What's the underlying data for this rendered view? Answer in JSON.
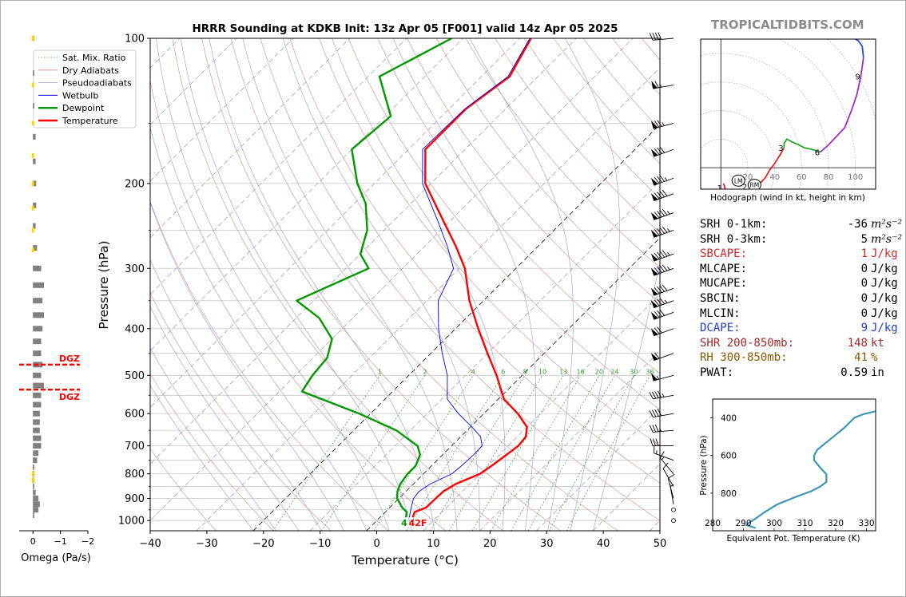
{
  "title": "HRRR Sounding at KDKB Init: 13z Apr 05 [F001] valid 14z Apr 05 2025",
  "site_watermark": "TROPICALTIDBITS.COM",
  "legend": {
    "items": [
      {
        "label": "Sat. Mix. Ratio",
        "color": "#2ca02c",
        "style": "dotted"
      },
      {
        "label": "Dry Adiabats",
        "color": "#d98c8c",
        "style": "solid"
      },
      {
        "label": "Pseudoadiabats",
        "color": "#9a9ad0",
        "style": "solid"
      },
      {
        "label": "Wetbulb",
        "color": "#0000ff",
        "style": "solid"
      },
      {
        "label": "Dewpoint",
        "color": "#009900",
        "style": "solid"
      },
      {
        "label": "Temperature",
        "color": "#ff0000",
        "style": "solid"
      }
    ]
  },
  "skewt": {
    "xlabel": "Temperature (°C)",
    "ylabel": "Pressure (hPa)",
    "x_ticks": [
      "−40",
      "−30",
      "−20",
      "−10",
      "0",
      "10",
      "20",
      "30",
      "40",
      "50"
    ],
    "y_ticks": [
      "100",
      "200",
      "300",
      "400",
      "500",
      "600",
      "700",
      "800",
      "900",
      "1000"
    ],
    "mixing_ratio_labels": [
      "1",
      "2",
      "4",
      "6",
      "8",
      "10",
      "13",
      "16",
      "20",
      "24",
      "30",
      "36"
    ],
    "surface_dewpoint_label": "4",
    "surface_temp_label": "42F"
  },
  "omega": {
    "xlabel": "Omega (Pa/s)",
    "ticks": [
      "0",
      "−1",
      "−2"
    ],
    "dgz_label_top": "DGZ",
    "dgz_label_bottom": "DGZ"
  },
  "hodograph": {
    "caption": "Hodograph (wind in kt, height in km)",
    "ring_labels": [
      "20",
      "40",
      "60",
      "80",
      "100"
    ],
    "height_labels": [
      "1",
      "2",
      "3",
      "6",
      "9"
    ],
    "lm_label": "LM",
    "rm_label": "RM"
  },
  "params": [
    {
      "label": "SRH 0-1km:",
      "value": "-36",
      "unit": "m²s⁻²",
      "color": "#000000"
    },
    {
      "label": "SRH 0-3km:",
      "value": "5",
      "unit": "m²s⁻²",
      "color": "#000000"
    },
    {
      "label": "SBCAPE:",
      "value": "1",
      "unit": "J/kg",
      "color": "#d62728"
    },
    {
      "label": "MLCAPE:",
      "value": "0",
      "unit": "J/kg",
      "color": "#000000"
    },
    {
      "label": "MUCAPE:",
      "value": "0",
      "unit": "J/kg",
      "color": "#000000"
    },
    {
      "label": "SBCIN:",
      "value": "0",
      "unit": "J/kg",
      "color": "#000000"
    },
    {
      "label": "MLCIN:",
      "value": "0",
      "unit": "J/kg",
      "color": "#000000"
    },
    {
      "label": "DCAPE:",
      "value": "9",
      "unit": "J/kg",
      "color": "#1f3fcf"
    },
    {
      "label": "SHR 200-850mb:",
      "value": "148",
      "unit": "kt",
      "color": "#a52a2a"
    },
    {
      "label": "RH 300-850mb:",
      "value": "41",
      "unit": "%",
      "color": "#8b5a00"
    },
    {
      "label": "PWAT:",
      "value": "0.59",
      "unit": "in",
      "color": "#000000"
    }
  ],
  "theta_e_panel": {
    "xlabel": "Equivalent Pot. Temperature (K)",
    "ylabel": "Pressure (hPa)",
    "x_ticks": [
      "280",
      "290",
      "300",
      "310",
      "320",
      "330"
    ],
    "y_ticks": [
      "400",
      "600",
      "800"
    ]
  },
  "chart_data": [
    {
      "type": "line",
      "name": "skew-t",
      "title": "HRRR Sounding at KDKB Init: 13z Apr 05 [F001] valid 14z Apr 05 2025",
      "xlabel": "Temperature (°C)",
      "ylabel": "Pressure (hPa)",
      "xlim": [
        -40,
        50
      ],
      "ylim": [
        1050,
        100
      ],
      "y_scale": "log",
      "skew": true,
      "legend_position": "top-left",
      "series": [
        {
          "name": "Temperature",
          "color": "#ff0000",
          "points": [
            [
              985,
              5.8
            ],
            [
              960,
              5.2
            ],
            [
              940,
              6.4
            ],
            [
              900,
              6.5
            ],
            [
              870,
              6.6
            ],
            [
              840,
              7.5
            ],
            [
              800,
              10
            ],
            [
              770,
              10.6
            ],
            [
              730,
              11.3
            ],
            [
              700,
              11.8
            ],
            [
              670,
              11.5
            ],
            [
              640,
              10
            ],
            [
              600,
              6
            ],
            [
              560,
              1
            ],
            [
              500,
              -4.5
            ],
            [
              450,
              -10
            ],
            [
              400,
              -16
            ],
            [
              350,
              -22.5
            ],
            [
              300,
              -29
            ],
            [
              270,
              -34.5
            ],
            [
              240,
              -41
            ],
            [
              200,
              -51
            ],
            [
              170,
              -57
            ],
            [
              140,
              -57
            ],
            [
              120,
              -55
            ],
            [
              100,
              -58
            ]
          ]
        },
        {
          "name": "Dewpoint",
          "color": "#009900",
          "points": [
            [
              985,
              4.6
            ],
            [
              960,
              3.8
            ],
            [
              940,
              2.2
            ],
            [
              900,
              -0.3
            ],
            [
              870,
              -1.5
            ],
            [
              840,
              -2.3
            ],
            [
              800,
              -2.8
            ],
            [
              770,
              -2.8
            ],
            [
              730,
              -4
            ],
            [
              700,
              -6
            ],
            [
              650,
              -12.5
            ],
            [
              600,
              -22
            ],
            [
              540,
              -36
            ],
            [
              500,
              -37
            ],
            [
              460,
              -37.5
            ],
            [
              420,
              -40
            ],
            [
              380,
              -46
            ],
            [
              350,
              -53
            ],
            [
              300,
              -46
            ],
            [
              280,
              -50
            ],
            [
              250,
              -53
            ],
            [
              220,
              -58
            ],
            [
              200,
              -63
            ],
            [
              170,
              -70
            ],
            [
              145,
              -69
            ],
            [
              120,
              -78
            ],
            [
              100,
              -72
            ]
          ]
        },
        {
          "name": "Wetbulb",
          "color": "#0000ff",
          "points": [
            [
              985,
              5.2
            ],
            [
              960,
              4.4
            ],
            [
              940,
              3.8
            ],
            [
              900,
              2.6
            ],
            [
              870,
              2.3
            ],
            [
              840,
              3.0
            ],
            [
              800,
              5
            ],
            [
              770,
              5.3
            ],
            [
              730,
              5.5
            ],
            [
              700,
              5.4
            ],
            [
              670,
              3.5
            ],
            [
              640,
              0.3
            ],
            [
              600,
              -4.5
            ],
            [
              560,
              -9
            ],
            [
              500,
              -13.2
            ],
            [
              450,
              -18
            ],
            [
              400,
              -23
            ],
            [
              350,
              -28
            ],
            [
              300,
              -31
            ],
            [
              270,
              -36
            ],
            [
              240,
              -42
            ],
            [
              200,
              -51.5
            ],
            [
              170,
              -57.5
            ],
            [
              140,
              -57.2
            ],
            [
              120,
              -55.3
            ],
            [
              100,
              -58.2
            ]
          ]
        }
      ],
      "wind_barbs": [
        {
          "p": 1000,
          "dir": 0,
          "kt": 0
        },
        {
          "p": 950,
          "dir": 0,
          "kt": 0
        },
        {
          "p": 925,
          "dir": 350,
          "kt": 5
        },
        {
          "p": 900,
          "dir": 345,
          "kt": 10
        },
        {
          "p": 850,
          "dir": 330,
          "kt": 10
        },
        {
          "p": 800,
          "dir": 320,
          "kt": 15
        },
        {
          "p": 750,
          "dir": 290,
          "kt": 15
        },
        {
          "p": 700,
          "dir": 270,
          "kt": 30
        },
        {
          "p": 650,
          "dir": 265,
          "kt": 35
        },
        {
          "p": 600,
          "dir": 260,
          "kt": 40
        },
        {
          "p": 550,
          "dir": 260,
          "kt": 45
        },
        {
          "p": 500,
          "dir": 255,
          "kt": 55
        },
        {
          "p": 450,
          "dir": 250,
          "kt": 60
        },
        {
          "p": 400,
          "dir": 250,
          "kt": 70
        },
        {
          "p": 370,
          "dir": 250,
          "kt": 80
        },
        {
          "p": 350,
          "dir": 250,
          "kt": 85
        },
        {
          "p": 330,
          "dir": 250,
          "kt": 90
        },
        {
          "p": 300,
          "dir": 250,
          "kt": 95
        },
        {
          "p": 280,
          "dir": 250,
          "kt": 95
        },
        {
          "p": 250,
          "dir": 250,
          "kt": 95
        },
        {
          "p": 230,
          "dir": 250,
          "kt": 95
        },
        {
          "p": 210,
          "dir": 250,
          "kt": 90
        },
        {
          "p": 195,
          "dir": 250,
          "kt": 85
        },
        {
          "p": 170,
          "dir": 250,
          "kt": 80
        },
        {
          "p": 150,
          "dir": 255,
          "kt": 75
        },
        {
          "p": 125,
          "dir": 260,
          "kt": 65
        },
        {
          "p": 100,
          "dir": 265,
          "kt": 40
        }
      ]
    },
    {
      "type": "bar",
      "name": "omega",
      "xlabel": "Omega (Pa/s)",
      "xlim": [
        0.5,
        -2
      ],
      "dgz_pressures": [
        475,
        535
      ],
      "bars": [
        {
          "p": 100,
          "v": -0.05
        },
        {
          "p": 118,
          "v": -0.05
        },
        {
          "p": 138,
          "v": -0.05
        },
        {
          "p": 160,
          "v": -0.1
        },
        {
          "p": 180,
          "v": -0.1
        },
        {
          "p": 200,
          "v": -0.12
        },
        {
          "p": 222,
          "v": -0.12
        },
        {
          "p": 245,
          "v": -0.1
        },
        {
          "p": 272,
          "v": -0.15
        },
        {
          "p": 300,
          "v": -0.3
        },
        {
          "p": 325,
          "v": -0.4
        },
        {
          "p": 350,
          "v": -0.35
        },
        {
          "p": 375,
          "v": -0.4
        },
        {
          "p": 400,
          "v": -0.35
        },
        {
          "p": 425,
          "v": -0.3
        },
        {
          "p": 450,
          "v": -0.3
        },
        {
          "p": 475,
          "v": -0.35
        },
        {
          "p": 500,
          "v": -0.3
        },
        {
          "p": 525,
          "v": -0.4
        },
        {
          "p": 550,
          "v": -0.3
        },
        {
          "p": 575,
          "v": -0.3
        },
        {
          "p": 600,
          "v": -0.25
        },
        {
          "p": 625,
          "v": -0.25
        },
        {
          "p": 650,
          "v": -0.25
        },
        {
          "p": 675,
          "v": -0.3
        },
        {
          "p": 700,
          "v": -0.3
        },
        {
          "p": 725,
          "v": -0.2
        },
        {
          "p": 750,
          "v": -0.15
        },
        {
          "p": 775,
          "v": -0.05
        },
        {
          "p": 800,
          "v": -0.05
        },
        {
          "p": 825,
          "v": -0.05
        },
        {
          "p": 850,
          "v": -0.05
        },
        {
          "p": 875,
          "v": -0.1
        },
        {
          "p": 900,
          "v": -0.2
        },
        {
          "p": 925,
          "v": -0.25
        },
        {
          "p": 950,
          "v": -0.2
        },
        {
          "p": 975,
          "v": -0.05
        }
      ],
      "yellow_pressures": [
        100,
        125,
        150,
        175,
        200,
        225,
        250,
        275,
        800,
        825
      ]
    },
    {
      "type": "line",
      "name": "hodograph",
      "xlabel": "Hodograph (wind in kt, height in km)",
      "xlim": [
        -15,
        115
      ],
      "ylim": [
        -15,
        90
      ],
      "segments": [
        {
          "color": "#e8231f",
          "points": [
            [
              2,
              -11
            ],
            [
              4,
              -17
            ],
            [
              7,
              -17
            ],
            [
              12,
              -17
            ],
            [
              18,
              -16
            ],
            [
              24,
              -15
            ],
            [
              29,
              -11
            ],
            [
              33,
              -7
            ],
            [
              36,
              -2
            ],
            [
              40,
              3
            ],
            [
              44,
              9
            ],
            [
              47,
              14
            ]
          ]
        },
        {
          "color": "#2ca02c",
          "points": [
            [
              47,
              14
            ],
            [
              47,
              17
            ],
            [
              49,
              20
            ],
            [
              53,
              18
            ],
            [
              58,
              16
            ],
            [
              62,
              14
            ],
            [
              67,
              13
            ],
            [
              74,
              11
            ]
          ]
        },
        {
          "color": "#a62ac0",
          "points": [
            [
              74,
              11
            ],
            [
              80,
              16
            ],
            [
              86,
              22
            ],
            [
              92,
              28
            ],
            [
              97,
              40
            ],
            [
              101,
              51
            ],
            [
              104,
              64
            ],
            [
              106,
              77
            ]
          ]
        },
        {
          "color": "#2a4bd8",
          "points": [
            [
              106,
              77
            ],
            [
              105,
              85
            ],
            [
              102,
              89
            ],
            [
              100,
              90
            ]
          ]
        }
      ],
      "height_points": [
        [
          1,
          1.5,
          -14
        ],
        [
          2,
          20,
          -13
        ],
        [
          3,
          47,
          14
        ],
        [
          6,
          74,
          11
        ],
        [
          9,
          104,
          64
        ]
      ],
      "lm": [
        13,
        -9
      ],
      "rm": [
        25,
        -12
      ]
    },
    {
      "type": "line",
      "name": "theta-e",
      "xlabel": "Equivalent Pot. Temperature (K)",
      "ylabel": "Pressure (hPa)",
      "xlim": [
        280,
        333
      ],
      "ylim": [
        1000,
        300
      ],
      "series": [
        {
          "name": "theta-e",
          "color": "#3c96b4",
          "points": [
            [
              294,
              985
            ],
            [
              291,
              970
            ],
            [
              292,
              955
            ],
            [
              294,
              935
            ],
            [
              297,
              900
            ],
            [
              301,
              860
            ],
            [
              307,
              820
            ],
            [
              312,
              790
            ],
            [
              315,
              765
            ],
            [
              317,
              740
            ],
            [
              317,
              700
            ],
            [
              315,
              665
            ],
            [
              313,
              625
            ],
            [
              313,
              600
            ],
            [
              314,
              570
            ],
            [
              317,
              530
            ],
            [
              320,
              490
            ],
            [
              323,
              450
            ],
            [
              326,
              400
            ],
            [
              329,
              380
            ],
            [
              333,
              365
            ],
            [
              335,
              350
            ]
          ]
        }
      ]
    }
  ]
}
